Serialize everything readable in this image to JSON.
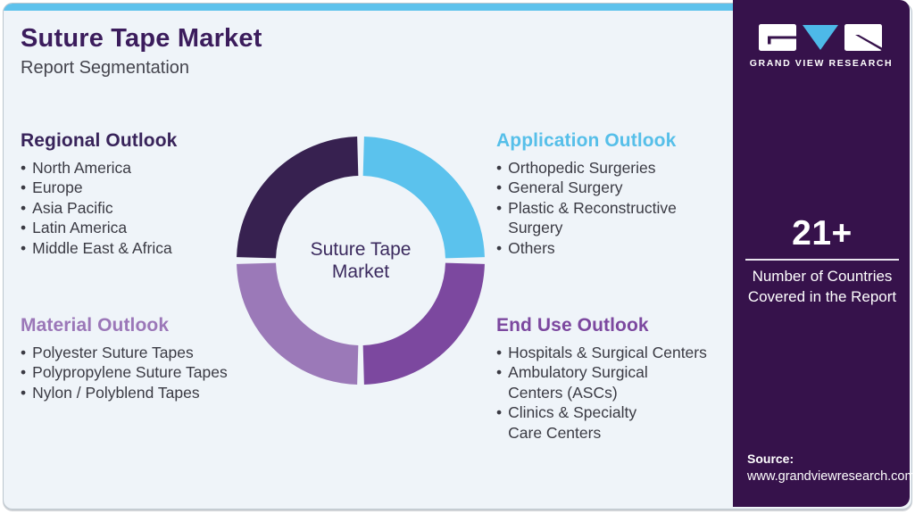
{
  "header": {
    "title": "Suture Tape Market",
    "subtitle": "Report Segmentation"
  },
  "outlooks": {
    "regional": {
      "title": "Regional Outlook",
      "color": "#38235a",
      "items": [
        "North America",
        "Europe",
        "Asia Pacific",
        "Latin America",
        "Middle East & Africa"
      ]
    },
    "application": {
      "title": "Application Outlook",
      "color": "#56bfe9",
      "items": [
        "Orthopedic Surgeries",
        "General Surgery",
        "Plastic & Reconstructive\nSurgery",
        "Others"
      ]
    },
    "material": {
      "title": "Material Outlook",
      "color": "#9b77b8",
      "items": [
        "Polyester Suture Tapes",
        "Polypropylene Suture Tapes",
        "Nylon / Polyblend Tapes"
      ]
    },
    "end_use": {
      "title": "End Use Outlook",
      "color": "#7c489f",
      "items": [
        "Hospitals & Surgical Centers",
        "Ambulatory Surgical\nCenters (ASCs)",
        "Clinics & Specialty\nCare Centers"
      ]
    }
  },
  "chart_data": {
    "type": "pie",
    "subtype": "donut",
    "title": "Suture Tape Market",
    "center_label": "Suture Tape\nMarket",
    "start_angle_deg": 0,
    "gap_deg": 3.2,
    "legend": "none",
    "segments": [
      {
        "label": "Application Outlook",
        "value": 25,
        "color": "#5bc2ed"
      },
      {
        "label": "End Use Outlook",
        "value": 25,
        "color": "#7c489f"
      },
      {
        "label": "Material Outlook",
        "value": 25,
        "color": "#9b79b8"
      },
      {
        "label": "Regional Outlook",
        "value": 25,
        "color": "#372150"
      }
    ]
  },
  "sidebar": {
    "logo_wordmark": "GRAND VIEW RESEARCH",
    "stat_value": "21+",
    "stat_caption": "Number of Countries\nCovered in the Report",
    "source_label": "Source:",
    "source_url": "www.grandviewresearch.com"
  },
  "colors": {
    "accent_cyan": "#5ec2ec",
    "card_bg": "#eff4f9",
    "sidebar_bg": "#36124b",
    "title": "#3b1c5c",
    "body_text": "#3a3a43"
  }
}
